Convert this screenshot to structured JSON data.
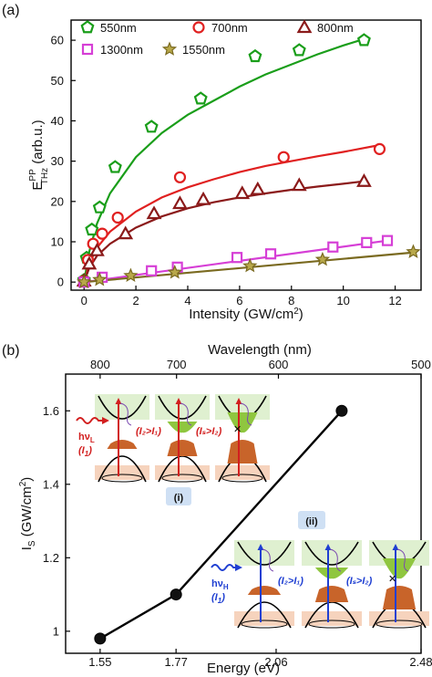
{
  "panels": {
    "a_label": "(a)",
    "b_label": "(b)"
  },
  "chart_data": [
    {
      "type": "scatter",
      "panel": "(a)",
      "xlabel": "Intensity (GW/cm²)",
      "xlabel_main": "Intensity (GW/cm",
      "xlabel_sup": "2",
      "xlabel_end": ")",
      "ylabel_main": "E",
      "ylabel_sup": "PP",
      "ylabel_sub": "THz",
      "ylabel_unit": " (arb.u.)",
      "xlim": [
        -0.5,
        13
      ],
      "ylim": [
        -2,
        65
      ],
      "xticks": [
        0,
        2,
        4,
        6,
        8,
        10,
        12
      ],
      "yticks": [
        0,
        10,
        20,
        30,
        40,
        50,
        60
      ],
      "grid": false,
      "legend_position": "top",
      "series": [
        {
          "name": "550nm",
          "color": "#1a9e1a",
          "marker": "pentagon",
          "x": [
            0,
            0.1,
            0.3,
            0.6,
            1.2,
            2.6,
            4.5,
            6.6,
            8.3,
            10.8
          ],
          "y": [
            0.5,
            6,
            13,
            18.5,
            28.5,
            38.5,
            45.5,
            56,
            57.5,
            60
          ],
          "fit": [
            [
              0,
              0
            ],
            [
              0.2,
              7.5
            ],
            [
              0.5,
              14.5
            ],
            [
              1,
              22
            ],
            [
              2,
              31
            ],
            [
              3,
              37
            ],
            [
              4,
              41.5
            ],
            [
              5,
              45
            ],
            [
              6,
              48.5
            ],
            [
              7,
              51.5
            ],
            [
              8,
              54
            ],
            [
              9,
              56.5
            ],
            [
              10,
              58.7
            ],
            [
              10.8,
              60.3
            ]
          ]
        },
        {
          "name": "700nm",
          "color": "#e02020",
          "marker": "circle",
          "x": [
            0,
            0.15,
            0.35,
            0.7,
            1.3,
            3.7,
            7.7,
            11.4
          ],
          "y": [
            0.3,
            5.5,
            9.5,
            12,
            16,
            26,
            31,
            33
          ],
          "fit": [
            [
              0,
              0
            ],
            [
              0.2,
              4.5
            ],
            [
              0.5,
              8.5
            ],
            [
              1,
              12.5
            ],
            [
              2,
              17.5
            ],
            [
              3,
              21
            ],
            [
              4,
              23.5
            ],
            [
              5,
              25.5
            ],
            [
              6,
              27.3
            ],
            [
              7,
              28.8
            ],
            [
              8,
              30
            ],
            [
              9,
              31.2
            ],
            [
              10,
              32.3
            ],
            [
              11.4,
              34
            ]
          ]
        },
        {
          "name": "800nm",
          "color": "#8b1a1a",
          "marker": "triangle",
          "x": [
            0,
            0.2,
            0.5,
            1.6,
            2.7,
            3.7,
            4.6,
            6.1,
            6.7,
            8.3,
            10.8
          ],
          "y": [
            0.3,
            4.5,
            7.8,
            12,
            17,
            19.5,
            20.5,
            22,
            23,
            24,
            25
          ],
          "fit": [
            [
              0,
              0
            ],
            [
              0.2,
              3.5
            ],
            [
              0.5,
              6.5
            ],
            [
              1,
              9.5
            ],
            [
              2,
              13.5
            ],
            [
              3,
              16.3
            ],
            [
              4,
              18.3
            ],
            [
              5,
              19.8
            ],
            [
              6,
              21
            ],
            [
              7,
              22
            ],
            [
              8,
              22.9
            ],
            [
              9,
              23.7
            ],
            [
              10,
              24.4
            ],
            [
              10.8,
              25
            ]
          ]
        },
        {
          "name": "1300nm",
          "color": "#d63fd6",
          "marker": "square",
          "x": [
            0,
            0.7,
            2.6,
            3.6,
            5.9,
            7.2,
            9.6,
            10.9,
            11.7
          ],
          "y": [
            0,
            1.2,
            2.8,
            3.7,
            6.1,
            7,
            8.7,
            9.8,
            10.3
          ],
          "fit": [
            [
              0,
              0
            ],
            [
              11.7,
              10.3
            ]
          ]
        },
        {
          "name": "1550nm",
          "color": "#7a6a20",
          "marker": "star",
          "x": [
            0,
            0.6,
            1.8,
            3.5,
            6.4,
            9.2,
            12.7
          ],
          "y": [
            0,
            0.6,
            1.6,
            2.4,
            4,
            5.6,
            7.5
          ],
          "fit": [
            [
              0,
              0
            ],
            [
              12.8,
              7.4
            ]
          ]
        }
      ]
    },
    {
      "type": "line",
      "panel": "(b)",
      "xlabel": "Energy (eV)",
      "ylabel_main": "I",
      "ylabel_sub": "S",
      "ylabel_unit": " (GW/cm",
      "ylabel_sup": "2",
      "ylabel_end": ")",
      "x2label": "Wavelength (nm)",
      "xlim": [
        1.45,
        2.48
      ],
      "ylim": [
        0.94,
        1.7
      ],
      "xticks": [
        1.55,
        1.77,
        2.06,
        2.48
      ],
      "xtick_labels": [
        "1.55",
        "1.77",
        "2.06",
        "2.48"
      ],
      "x2ticks": [
        800,
        700,
        600,
        500
      ],
      "x2tick_labels": [
        "800",
        "700",
        "600",
        "500"
      ],
      "yticks": [
        1.0,
        1.2,
        1.4,
        1.6
      ],
      "ytick_labels": [
        "1",
        "1.2",
        "1.4",
        "1.6"
      ],
      "grid": false,
      "series": [
        {
          "color": "#000000",
          "x": [
            1.55,
            1.77,
            2.25
          ],
          "y": [
            0.98,
            1.1,
            1.6
          ]
        }
      ],
      "inset_labels": {
        "i": "(i)",
        "ii": "(ii)",
        "hv_L": "hν",
        "hv_L_sub": "L",
        "I1": "(I",
        "I1_sub": "1",
        "I1_end": ")",
        "hv_H": "hν",
        "hv_H_sub": "H",
        "I2_gt_I1": "(I₂>I₁)",
        "IS_gt_I2": "(Iₛ>I₂)",
        "cross": "✕"
      },
      "inset_colors": {
        "low_arrow": "#d21f1f",
        "high_arrow": "#1f3fd2",
        "conduction_fill": "#8fc63f",
        "conduction_bg": "#dff0d0",
        "valence_fill": "#c8642a",
        "valence_bg": "#f6d3bd"
      }
    }
  ]
}
